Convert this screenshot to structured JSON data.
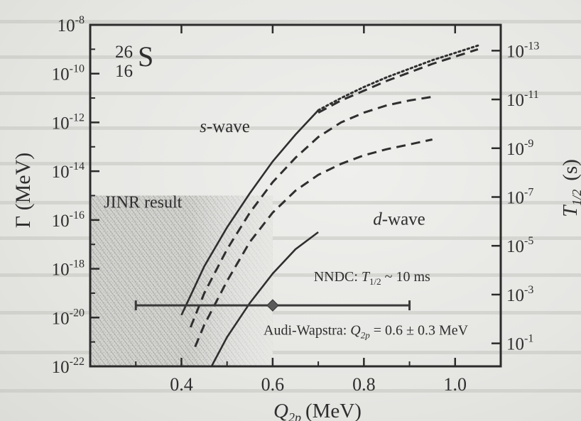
{
  "chart_data": {
    "type": "line",
    "title": "",
    "nucleus": {
      "mass": "26",
      "charge": "16",
      "symbol": "S"
    },
    "xlabel": {
      "symbol": "Q",
      "subscript": "2p",
      "unit": "(MeV)"
    },
    "ylabel": "Γ (MeV)",
    "y2label": {
      "symbol": "T",
      "subscript": "1/2",
      "unit": "(s)"
    },
    "xlim": [
      0.2,
      1.1
    ],
    "ylim": [
      -22,
      -8
    ],
    "y_scale": "log",
    "xticks": [
      0.4,
      0.6,
      0.8,
      1.0
    ],
    "xtick_labels": [
      "0.4",
      "0.6",
      "0.8",
      "1.0"
    ],
    "yticks_exp": [
      -8,
      -10,
      -12,
      -14,
      -16,
      -18,
      -20,
      -22
    ],
    "y2ticks_exp": [
      -13,
      -11,
      -9,
      -7,
      -5,
      -3,
      -1
    ],
    "grid": false,
    "series": [
      {
        "name": "s-wave",
        "style": "solid",
        "x": [
          0.4,
          0.42,
          0.45,
          0.5,
          0.55,
          0.6,
          0.65,
          0.7
        ],
        "y": [
          -19.9,
          -19.1,
          -17.9,
          -16.3,
          -14.9,
          -13.6,
          -12.5,
          -11.5
        ]
      },
      {
        "style": "dotted",
        "x": [
          0.7,
          0.75,
          0.8,
          0.85,
          0.9,
          0.95,
          1.0,
          1.05
        ],
        "y": [
          -11.5,
          -11.0,
          -10.55,
          -10.15,
          -9.8,
          -9.45,
          -9.15,
          -8.85
        ]
      },
      {
        "style": "dashed",
        "x": [
          0.7,
          0.75,
          0.8,
          0.85,
          0.9,
          0.95,
          1.0,
          1.05
        ],
        "y": [
          -11.6,
          -11.1,
          -10.7,
          -10.3,
          -9.95,
          -9.6,
          -9.3,
          -9.0
        ]
      },
      {
        "style": "dashed",
        "x": [
          0.42,
          0.45,
          0.5,
          0.55,
          0.6,
          0.65,
          0.7,
          0.75,
          0.8,
          0.85,
          0.9,
          0.95
        ],
        "y": [
          -20.4,
          -19.0,
          -17.2,
          -15.7,
          -14.45,
          -13.45,
          -12.6,
          -12.0,
          -11.6,
          -11.3,
          -11.1,
          -10.95
        ]
      },
      {
        "style": "dashed",
        "x": [
          0.43,
          0.45,
          0.5,
          0.55,
          0.6,
          0.65,
          0.7,
          0.75,
          0.8,
          0.85,
          0.9,
          0.95
        ],
        "y": [
          -21.2,
          -20.3,
          -18.5,
          -16.9,
          -15.7,
          -14.8,
          -14.15,
          -13.7,
          -13.35,
          -13.1,
          -12.9,
          -12.7
        ]
      },
      {
        "name": "d-wave",
        "style": "solid",
        "x": [
          0.466,
          0.5,
          0.55,
          0.6,
          0.65,
          0.7
        ],
        "y": [
          -22.0,
          -20.8,
          -19.4,
          -18.2,
          -17.2,
          -16.5
        ]
      }
    ],
    "shaded_region": {
      "label": "JINR result",
      "x": [
        0.2,
        0.6
      ]
    },
    "errorbar": {
      "x": 0.6,
      "y": -19.5,
      "xerr": [
        0.3,
        0.9
      ],
      "label": "Audi-Wapstra: Q2p = 0.6 ± 0.3 MeV"
    },
    "annotations": [
      {
        "id": "swave",
        "text": "s-wave",
        "x": 0.44,
        "y": -12.4
      },
      {
        "id": "dwave",
        "text": "d-wave",
        "x": 0.82,
        "y": -16.2
      },
      {
        "id": "jinr",
        "text": "JINR result",
        "x": 0.23,
        "y": -15.5
      },
      {
        "id": "nndc",
        "text": "NNDC: T1/2 ~ 10 ms",
        "x": 0.69,
        "y": -18.5
      },
      {
        "id": "audi",
        "text": "Audi-Wapstra: Q2p = 0.6 ± 0.3 MeV",
        "x": 0.58,
        "y": -20.7
      }
    ],
    "labels": {
      "s_italic": "s",
      "s_rest": "-wave",
      "d_italic": "d",
      "d_rest": "-wave",
      "jinr": "JINR result",
      "nndc_pre": "NNDC: ",
      "nndc_T": "T",
      "nndc_sub": "1/2",
      "nndc_post": " ~ 10 ms",
      "audi_pre": "Audi-Wapstra: ",
      "audi_Q": "Q",
      "audi_sub": "2p",
      "audi_post": " = 0.6 ± 0.3 MeV"
    }
  }
}
